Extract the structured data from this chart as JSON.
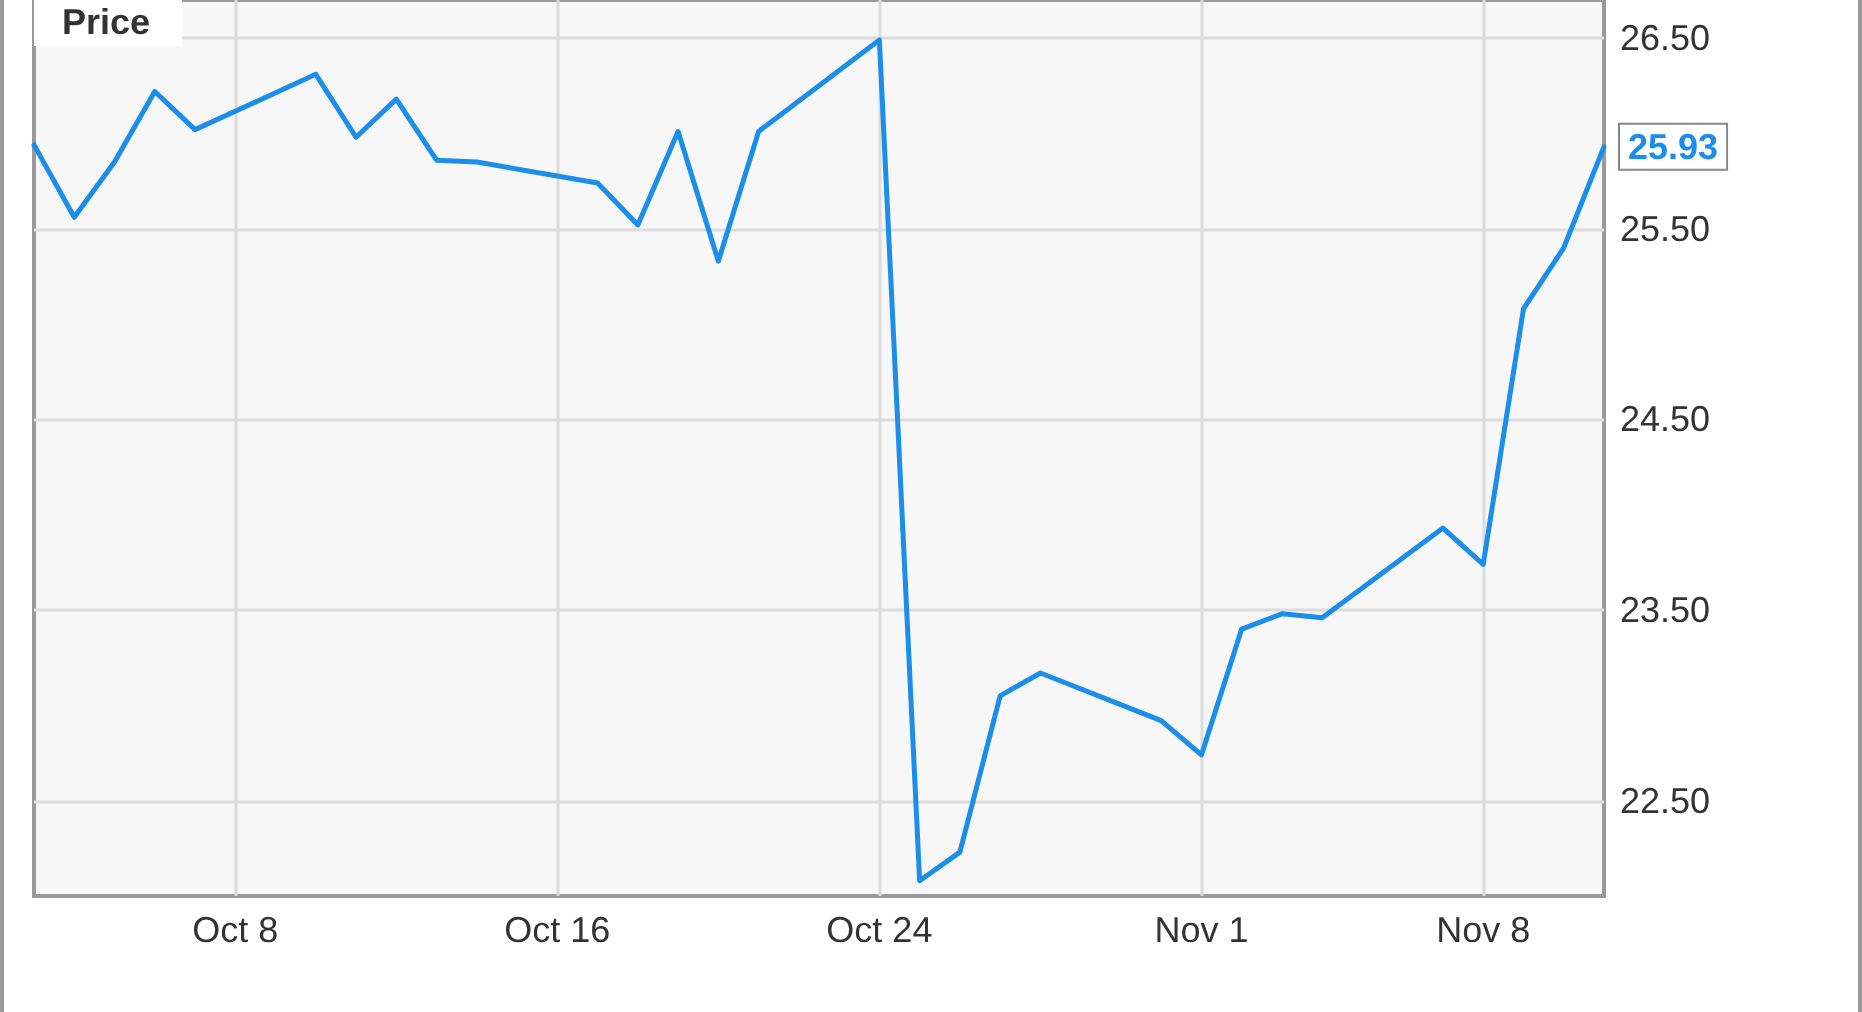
{
  "chart_data": {
    "type": "line",
    "title": "Price",
    "x": [
      "--10-03",
      "--10-04",
      "--10-05",
      "--10-06",
      "--10-07",
      "--10-10",
      "--10-11",
      "--10-12",
      "--10-13",
      "--10-14",
      "--10-17",
      "--10-18",
      "--10-19",
      "--10-20",
      "--10-21",
      "--10-24",
      "--10-25",
      "--10-26",
      "--10-27",
      "--10-28",
      "--10-31",
      "--11-01",
      "--11-02",
      "--11-03",
      "--11-04",
      "--11-07",
      "--11-08",
      "--11-09",
      "--11-10",
      "--11-11"
    ],
    "values": [
      25.94,
      25.56,
      25.85,
      26.22,
      26.02,
      26.31,
      25.98,
      26.18,
      25.86,
      25.85,
      25.74,
      25.52,
      26.01,
      25.33,
      26.01,
      26.49,
      22.08,
      22.23,
      23.05,
      23.17,
      22.92,
      22.74,
      23.4,
      23.48,
      23.46,
      23.93,
      23.74,
      25.08,
      25.4,
      25.93
    ],
    "value_labels": [
      null,
      null,
      null,
      null,
      null,
      null,
      null,
      null,
      null,
      null,
      null,
      null,
      null,
      null,
      null,
      null,
      null,
      null,
      null,
      null,
      null,
      null,
      null,
      null,
      null,
      null,
      null,
      null,
      null,
      "25.93"
    ],
    "color": "#1a8ee8",
    "marker": "none",
    "xlim": [
      "--10-03",
      "--11-11"
    ],
    "xticks": [
      {
        "value": "--10-08",
        "label": "Oct 8"
      },
      {
        "value": "--10-16",
        "label": "Oct 16"
      },
      {
        "value": "--10-24",
        "label": "Oct 24"
      },
      {
        "value": "--11-01",
        "label": "Nov 1"
      },
      {
        "value": "--11-08",
        "label": "Nov 8"
      }
    ],
    "ylim": [
      22.0,
      26.7
    ],
    "yticks": [
      {
        "value": 22.5,
        "label": "22.50"
      },
      {
        "value": 23.5,
        "label": "23.50"
      },
      {
        "value": 24.5,
        "label": "24.50"
      },
      {
        "value": 25.5,
        "label": "25.50"
      },
      {
        "value": 26.5,
        "label": "26.50"
      }
    ],
    "grid": true
  }
}
